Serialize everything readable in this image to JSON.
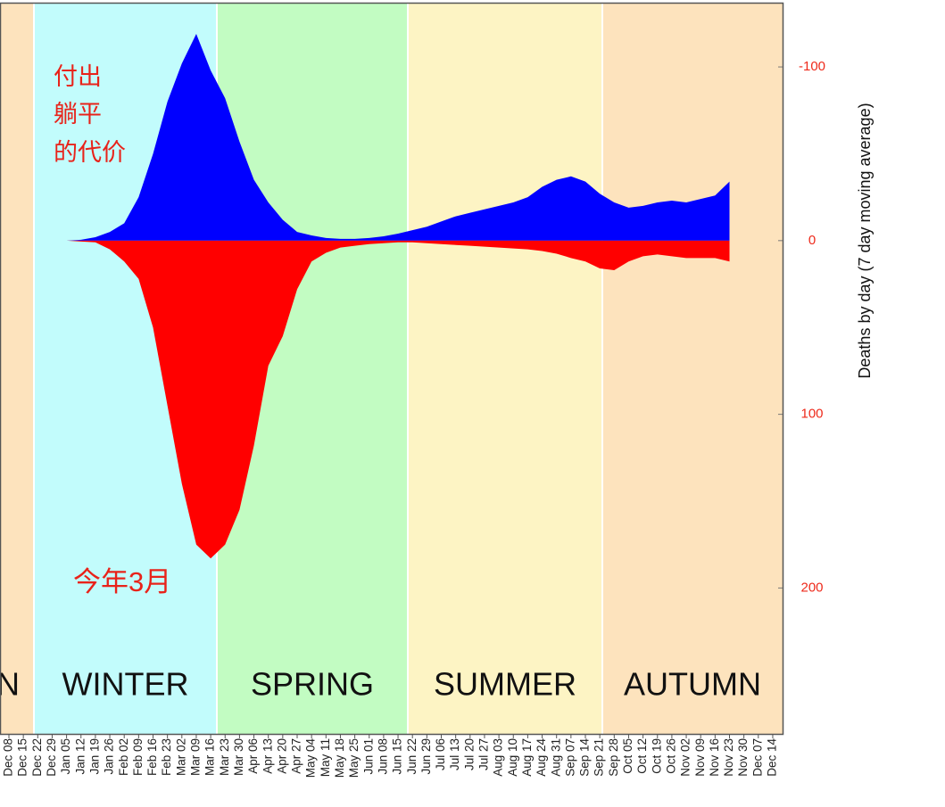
{
  "chart_data": {
    "type": "mirror_area",
    "y_axis_label": "Deaths by day (7 day moving average)",
    "annotations": [
      "付出",
      "躺平",
      "的代价",
      "今年3月"
    ],
    "seasons": [
      {
        "name": "AUTUMN",
        "color": "#fde3bd"
      },
      {
        "name": "WINTER",
        "color": "#c2fcfc"
      },
      {
        "name": "SPRING",
        "color": "#c2fcc2"
      },
      {
        "name": "SUMMER",
        "color": "#fdf4c4"
      },
      {
        "name": "AUTUMN",
        "color": "#fde3bd"
      }
    ],
    "categories": [
      "Dec 08",
      "Dec 15",
      "Dec 22",
      "Dec 29",
      "Jan 05",
      "Jan 12",
      "Jan 19",
      "Jan 26",
      "Feb 02",
      "Feb 09",
      "Feb 16",
      "Feb 23",
      "Mar 02",
      "Mar 09",
      "Mar 16",
      "Mar 23",
      "Mar 30",
      "Apr 06",
      "Apr 13",
      "Apr 20",
      "Apr 27",
      "May 04",
      "May 11",
      "May 18",
      "May 25",
      "Jun 01",
      "Jun 08",
      "Jun 15",
      "Jun 22",
      "Jun 29",
      "Jul 06",
      "Jul 13",
      "Jul 20",
      "Jul 27",
      "Aug 03",
      "Aug 10",
      "Aug 17",
      "Aug 24",
      "Aug 31",
      "Sep 07",
      "Sep 14",
      "Sep 21",
      "Sep 28",
      "Oct 05",
      "Oct 12",
      "Oct 19",
      "Oct 26",
      "Nov 02",
      "Nov 09",
      "Nov 16",
      "Nov 23",
      "Nov 30",
      "Dec 07",
      "Dec 14"
    ],
    "series": [
      {
        "color": "#0000ff",
        "values": [
          null,
          null,
          0,
          0,
          0,
          -0.5,
          -2,
          -5,
          -10,
          -25,
          -50,
          -80,
          -102,
          -119,
          -98,
          -82,
          -57,
          -35,
          -22,
          -12,
          -5,
          -3,
          -1.5,
          -1,
          -1,
          -1.5,
          -2.5,
          -4,
          -6,
          -8,
          -11,
          -14,
          -16,
          -18,
          -20,
          -22,
          -25,
          -31,
          -35,
          -37,
          -34,
          -27,
          -22,
          -19,
          -20,
          -22,
          -23,
          -22,
          -24,
          -26,
          -34,
          null,
          null,
          null
        ]
      },
      {
        "color": "#ff0000",
        "values": [
          null,
          null,
          0,
          0,
          0,
          0.5,
          1,
          5,
          12,
          22,
          50,
          95,
          140,
          175,
          183,
          175,
          155,
          118,
          72,
          55,
          28,
          12,
          7,
          4,
          3,
          2,
          1.5,
          1,
          1,
          1.5,
          2,
          2.5,
          3,
          3.5,
          4,
          4.5,
          5,
          6,
          7.5,
          10,
          12,
          16,
          17,
          12,
          9,
          8,
          9,
          10,
          10,
          10,
          12,
          null,
          null,
          null
        ]
      }
    ],
    "ylim": [
      -137,
      284
    ],
    "y_inverted": true,
    "yticks": [
      -100,
      0,
      100,
      200
    ]
  }
}
